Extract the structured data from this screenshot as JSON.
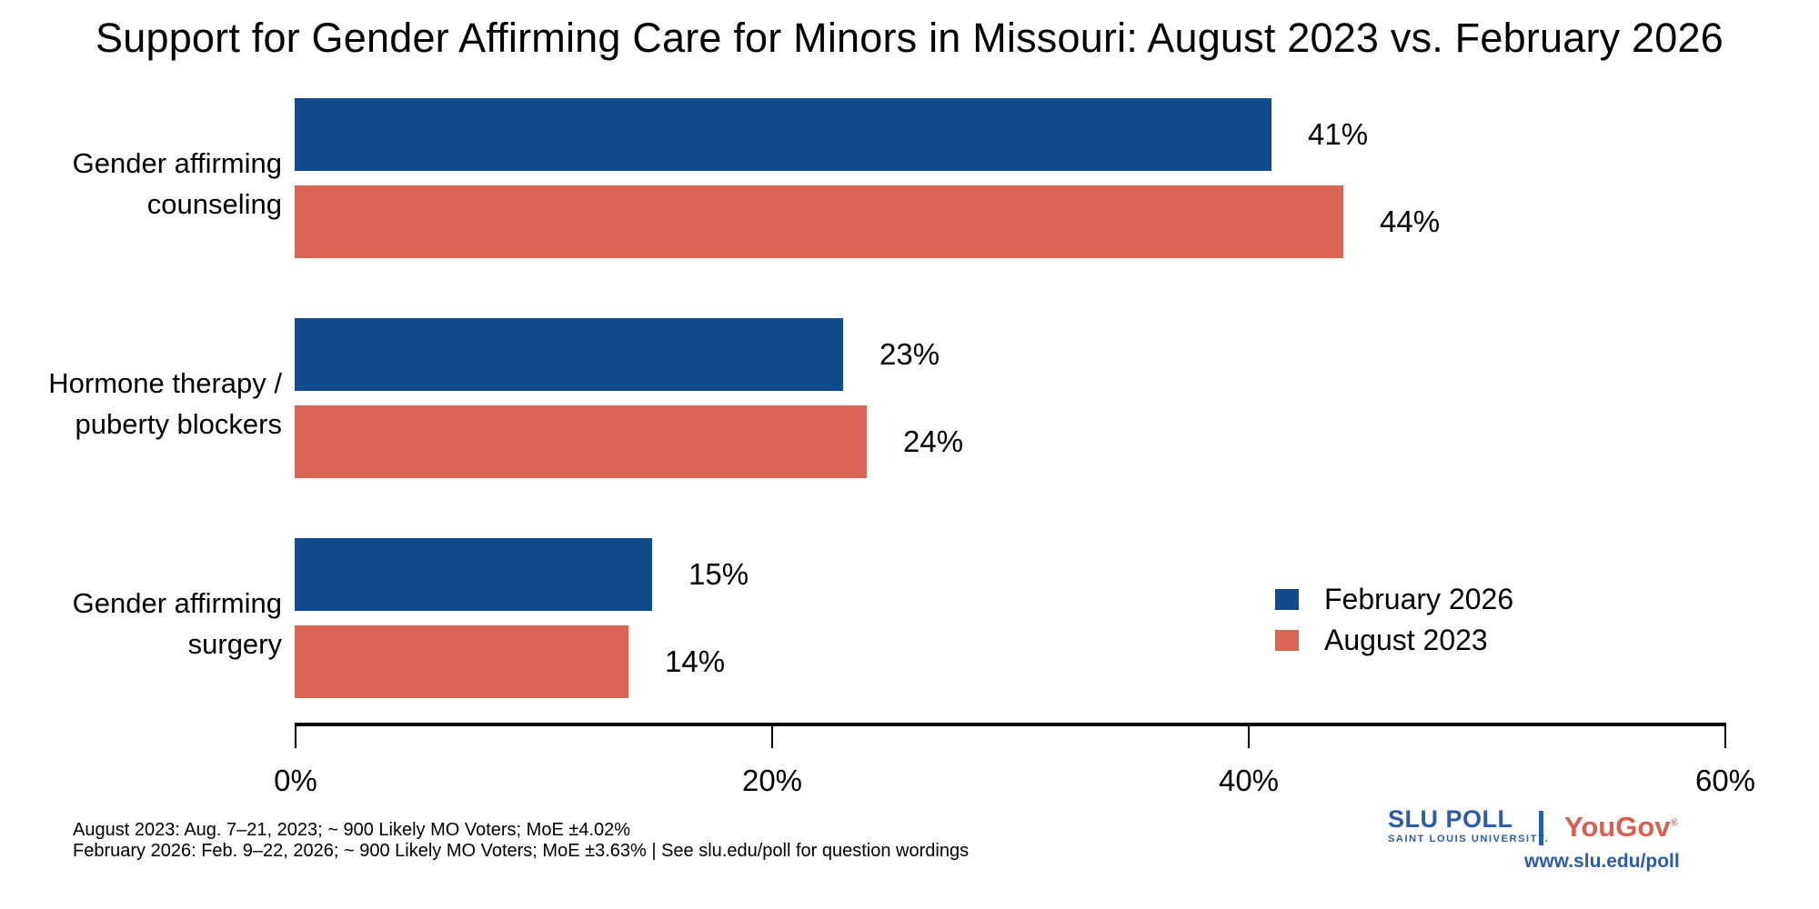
{
  "title": "Support for Gender Affirming Care for Minors in Missouri: August 2023 vs. February 2026",
  "chart_data": {
    "type": "bar",
    "orientation": "horizontal",
    "title": "Support for Gender Affirming Care for Minors in Missouri: August 2023 vs. February 2026",
    "categories": [
      "Gender affirming counseling",
      "Hormone therapy / puberty blockers",
      "Gender affirming surgery"
    ],
    "category_lines": [
      [
        "Gender affirming",
        "counseling"
      ],
      [
        "Hormone therapy /",
        "puberty blockers"
      ],
      [
        "Gender affirming",
        "surgery"
      ]
    ],
    "series": [
      {
        "name": "February 2026",
        "color": "#104C8C",
        "values": [
          41,
          23,
          15
        ]
      },
      {
        "name": "August 2023",
        "color": "#D96557",
        "values": [
          44,
          24,
          14
        ]
      }
    ],
    "value_labels": [
      [
        "41%",
        "23%",
        "15%"
      ],
      [
        "44%",
        "24%",
        "14%"
      ]
    ],
    "value_suffix": "%",
    "xlim": [
      0,
      60
    ],
    "x_ticks": [
      0,
      20,
      40,
      60
    ],
    "x_tick_labels": [
      "0%",
      "20%",
      "40%",
      "60%"
    ],
    "grid": false,
    "legend_position": "right-middle"
  },
  "legend": {
    "items": [
      {
        "label": "February 2026",
        "color": "#104C8C"
      },
      {
        "label": "August 2023",
        "color": "#D96557"
      }
    ]
  },
  "footnotes": {
    "line1": "August 2023: Aug. 7–21, 2023; ~ 900 Likely MO Voters; MoE ±4.02%",
    "line2": "February 2026: Feb. 9–22, 2026; ~ 900 Likely MO Voters; MoE ±3.63%  |  See slu.edu/poll for question wordings"
  },
  "branding": {
    "slu_poll_strong": "SLU",
    "slu_poll_light": " POLL",
    "slu_university": "SAINT LOUIS UNIVERSITY.",
    "yougov": "YouGov",
    "yougov_mark": "®",
    "url": "www.slu.edu/poll"
  },
  "colors": {
    "feb_2026_blue": "#104C8C",
    "aug_2023_red": "#D96557",
    "slu_blue": "#2A5CA8",
    "yougov_red": "#D95F51",
    "axis_black": "#000000"
  }
}
